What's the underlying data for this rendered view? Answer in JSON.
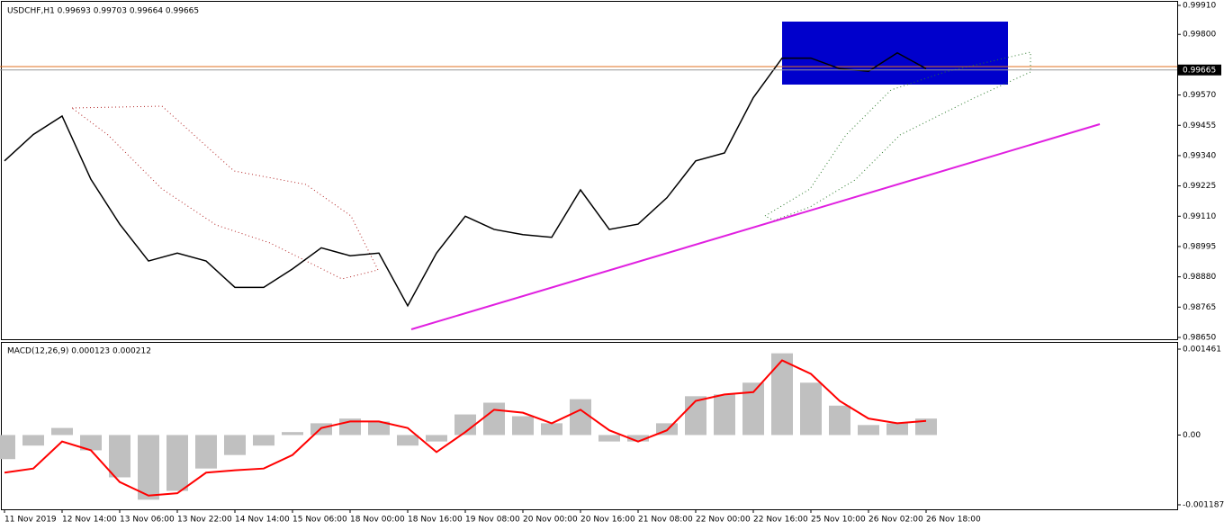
{
  "chart_data": [
    {
      "type": "line",
      "title": "USDCHF,H1  0.99693 0.99703 0.99664 0.99665",
      "categories": [
        "11 Nov 2019",
        null,
        "12 Nov 14:00",
        null,
        "13 Nov 06:00",
        null,
        "13 Nov 22:00",
        null,
        "14 Nov 14:00",
        null,
        "15 Nov 06:00",
        null,
        "18 Nov 00:00",
        null,
        "18 Nov 16:00",
        null,
        "19 Nov 08:00",
        null,
        "20 Nov 00:00",
        null,
        "20 Nov 16:00",
        null,
        "21 Nov 08:00",
        null,
        "22 Nov 00:00",
        null,
        "22 Nov 16:00",
        null,
        "25 Nov 10:00",
        null,
        "26 Nov 02:00",
        null,
        "26 Nov 18:00"
      ],
      "values": [
        0.9932,
        0.9942,
        0.9949,
        0.9925,
        0.9908,
        0.9894,
        0.9897,
        0.9894,
        0.9884,
        0.9884,
        0.9891,
        0.9899,
        0.9896,
        0.9897,
        0.9877,
        0.9897,
        0.9911,
        0.9906,
        0.9904,
        0.9903,
        0.9921,
        0.9906,
        0.9908,
        0.9918,
        0.9932,
        0.9935,
        0.9956,
        0.9971,
        0.9971,
        0.9967,
        0.9966,
        0.9973,
        0.9967
      ],
      "color": "#000000",
      "ylim": [
        0.9865,
        0.9991
      ],
      "yticks": [
        {
          "value": 0.9991,
          "label": "0.99910"
        },
        {
          "value": 0.998,
          "label": "0.99800"
        },
        {
          "value": 0.9957,
          "label": "0.99570"
        },
        {
          "value": 0.99455,
          "label": "0.99455"
        },
        {
          "value": 0.9934,
          "label": "0.99340"
        },
        {
          "value": 0.99225,
          "label": "0.99225"
        },
        {
          "value": 0.9911,
          "label": "0.99110"
        },
        {
          "value": 0.98995,
          "label": "0.98995"
        },
        {
          "value": 0.9888,
          "label": "0.98880"
        },
        {
          "value": 0.98765,
          "label": "0.98765"
        },
        {
          "value": 0.9865,
          "label": "0.98650"
        }
      ],
      "last_price": {
        "value": 0.99665,
        "label": "0.99665"
      }
    },
    {
      "type": "macd",
      "title": "MACD(12,26,9) 0.000123 0.000212",
      "series": [
        {
          "type": "bar",
          "color": "#c0c0c0",
          "values": [
            -0.00041,
            -0.00018,
            0.00012,
            -0.00026,
            -0.00072,
            -0.0011,
            -0.00095,
            -0.00057,
            -0.00034,
            -0.00018,
            5e-05,
            0.0002,
            0.00028,
            0.00023,
            -0.00018,
            -0.00011,
            0.00035,
            0.00055,
            0.00032,
            0.0002,
            0.00061,
            -0.00011,
            -0.00011,
            0.0002,
            0.00066,
            0.00069,
            0.00089,
            0.00139,
            0.00089,
            0.0005,
            0.00017,
            0.0002,
            0.00028
          ]
        },
        {
          "type": "line",
          "color": "#ff0000",
          "values": [
            -0.00064,
            -0.00057,
            -0.00011,
            -0.00026,
            -0.0008,
            -0.00103,
            -0.00099,
            -0.00064,
            -0.0006,
            -0.00057,
            -0.00034,
            0.00012,
            0.00023,
            0.00023,
            0.00012,
            -0.00029,
            5e-05,
            0.00043,
            0.00038,
            0.0002,
            0.00043,
            8e-05,
            -0.00011,
            8e-05,
            0.00058,
            0.00069,
            0.00073,
            0.00127,
            0.00104,
            0.00058,
            0.00028,
            0.0002,
            0.00024
          ]
        }
      ],
      "ylim": [
        -0.001187,
        0.001461
      ],
      "yticks": [
        0.001461,
        {
          "value": 0,
          "label": "0.00"
        },
        -0.001187
      ]
    }
  ]
}
